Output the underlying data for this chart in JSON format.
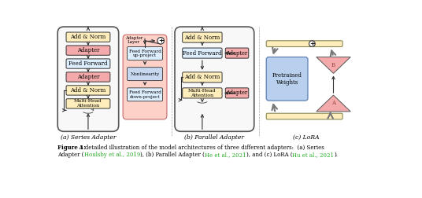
{
  "fig_width": 5.36,
  "fig_height": 2.52,
  "dpi": 100,
  "background": "#ffffff",
  "color_add_norm": "#ffeebb",
  "color_adapter": "#f4aaaa",
  "color_feedforward": "#ddeeff",
  "color_multihead": "#ffeebb",
  "color_nonlinearity": "#c8d8f0",
  "color_pretrained": "#b8d0ee",
  "color_lora_b": "#f4aaaa",
  "color_lora_a": "#f4aaaa",
  "color_lora_bar": "#ffeebb",
  "color_pink_bg": "#fdd0c8",
  "subtitles": [
    "(a) Series Adapter",
    "(b) Parallel Adapter",
    "(c) LoRA"
  ],
  "caption_bold": "Figure 1:",
  "caption_normal": "  A detailed illustration of the model architectures of three different adapters:  (a) Series",
  "caption_line2_before1": "Adapter (",
  "caption_link1": "Houlsby et al., 2019",
  "caption_after1": "), (b) Parallel Adapter (",
  "caption_link2": "He et al., 2021",
  "caption_after2": "), and (c) LoRA (",
  "caption_link3": "Hu et al., 2021",
  "caption_after3": ").",
  "link_color": "#22aa22"
}
